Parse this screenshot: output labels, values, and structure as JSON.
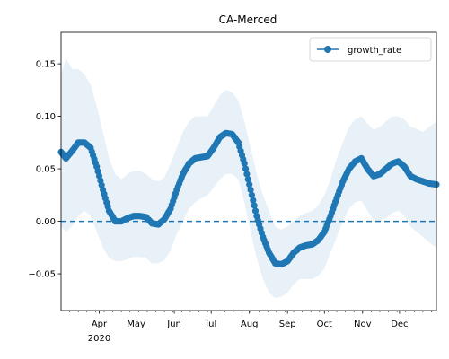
{
  "chart_data": {
    "type": "line",
    "title": "CA-Merced",
    "xlabel": "",
    "ylabel": "",
    "x_start": "2020-03-01",
    "x_end": "2020-12-31",
    "xlim": [
      "2020-03-01",
      "2020-12-31"
    ],
    "ylim": [
      -0.085,
      0.18
    ],
    "x_ticks": [
      {
        "date": "2020-04-01",
        "label": "Apr",
        "sublabel": "2020"
      },
      {
        "date": "2020-05-01",
        "label": "May"
      },
      {
        "date": "2020-06-01",
        "label": "Jun"
      },
      {
        "date": "2020-07-01",
        "label": "Jul"
      },
      {
        "date": "2020-08-01",
        "label": "Aug"
      },
      {
        "date": "2020-09-01",
        "label": "Sep"
      },
      {
        "date": "2020-10-01",
        "label": "Oct"
      },
      {
        "date": "2020-11-01",
        "label": "Nov"
      },
      {
        "date": "2020-12-01",
        "label": "Dec"
      }
    ],
    "y_ticks": [
      {
        "value": 0.15,
        "label": "0.15"
      },
      {
        "value": 0.1,
        "label": "0.10"
      },
      {
        "value": 0.05,
        "label": "0.05"
      },
      {
        "value": 0.0,
        "label": "0.00"
      },
      {
        "value": -0.05,
        "label": "−0.05"
      }
    ],
    "grid": false,
    "legend": {
      "position": "top-right"
    },
    "reference_line": {
      "y": 0.0,
      "style": "dashed",
      "color": "#1f77b4"
    },
    "series": [
      {
        "name": "growth_rate",
        "color": "#1f77b4",
        "marker": "circle",
        "band_color": "#1f77b4",
        "x": [
          "2020-03-01",
          "2020-03-05",
          "2020-03-10",
          "2020-03-15",
          "2020-03-20",
          "2020-03-25",
          "2020-03-30",
          "2020-04-04",
          "2020-04-09",
          "2020-04-14",
          "2020-04-19",
          "2020-04-24",
          "2020-04-29",
          "2020-05-04",
          "2020-05-09",
          "2020-05-14",
          "2020-05-19",
          "2020-05-24",
          "2020-05-29",
          "2020-06-03",
          "2020-06-08",
          "2020-06-13",
          "2020-06-18",
          "2020-06-23",
          "2020-06-28",
          "2020-07-03",
          "2020-07-08",
          "2020-07-13",
          "2020-07-18",
          "2020-07-23",
          "2020-07-28",
          "2020-08-02",
          "2020-08-07",
          "2020-08-12",
          "2020-08-17",
          "2020-08-22",
          "2020-08-27",
          "2020-09-01",
          "2020-09-06",
          "2020-09-11",
          "2020-09-16",
          "2020-09-21",
          "2020-09-26",
          "2020-10-01",
          "2020-10-06",
          "2020-10-11",
          "2020-10-16",
          "2020-10-21",
          "2020-10-26",
          "2020-10-31",
          "2020-11-05",
          "2020-11-10",
          "2020-11-15",
          "2020-11-20",
          "2020-11-25",
          "2020-11-30",
          "2020-12-05",
          "2020-12-10",
          "2020-12-15",
          "2020-12-20",
          "2020-12-25",
          "2020-12-31"
        ],
        "values": [
          0.066,
          0.06,
          0.067,
          0.075,
          0.075,
          0.07,
          0.052,
          0.03,
          0.01,
          0.0,
          0.0,
          0.003,
          0.005,
          0.005,
          0.004,
          -0.002,
          -0.003,
          0.002,
          0.012,
          0.03,
          0.045,
          0.055,
          0.06,
          0.061,
          0.062,
          0.07,
          0.08,
          0.084,
          0.083,
          0.075,
          0.055,
          0.03,
          0.005,
          -0.015,
          -0.03,
          -0.04,
          -0.041,
          -0.038,
          -0.03,
          -0.025,
          -0.023,
          -0.022,
          -0.018,
          -0.01,
          0.005,
          0.022,
          0.038,
          0.05,
          0.057,
          0.06,
          0.05,
          0.043,
          0.045,
          0.05,
          0.055,
          0.057,
          0.052,
          0.043,
          0.04,
          0.038,
          0.036,
          0.035
        ],
        "lower": [
          -0.005,
          -0.01,
          -0.005,
          0.005,
          0.01,
          0.005,
          -0.01,
          -0.025,
          -0.035,
          -0.038,
          -0.038,
          -0.036,
          -0.034,
          -0.034,
          -0.035,
          -0.04,
          -0.04,
          -0.037,
          -0.028,
          -0.012,
          0.0,
          0.012,
          0.018,
          0.022,
          0.025,
          0.032,
          0.04,
          0.045,
          0.045,
          0.04,
          0.018,
          -0.01,
          -0.035,
          -0.055,
          -0.068,
          -0.073,
          -0.072,
          -0.068,
          -0.06,
          -0.055,
          -0.055,
          -0.055,
          -0.052,
          -0.045,
          -0.03,
          -0.015,
          0.0,
          0.012,
          0.018,
          0.02,
          0.01,
          0.0,
          0.0,
          0.003,
          0.008,
          0.01,
          0.005,
          -0.005,
          -0.01,
          -0.015,
          -0.02,
          -0.025
        ],
        "upper": [
          0.14,
          0.155,
          0.145,
          0.145,
          0.14,
          0.13,
          0.11,
          0.085,
          0.06,
          0.045,
          0.04,
          0.045,
          0.048,
          0.048,
          0.045,
          0.04,
          0.038,
          0.042,
          0.055,
          0.07,
          0.085,
          0.095,
          0.1,
          0.1,
          0.1,
          0.11,
          0.12,
          0.125,
          0.123,
          0.115,
          0.095,
          0.07,
          0.045,
          0.025,
          0.01,
          -0.005,
          -0.008,
          -0.005,
          0.0,
          0.005,
          0.008,
          0.01,
          0.015,
          0.025,
          0.04,
          0.06,
          0.075,
          0.09,
          0.097,
          0.1,
          0.093,
          0.087,
          0.09,
          0.095,
          0.1,
          0.1,
          0.097,
          0.09,
          0.088,
          0.085,
          0.09,
          0.095
        ]
      }
    ]
  }
}
